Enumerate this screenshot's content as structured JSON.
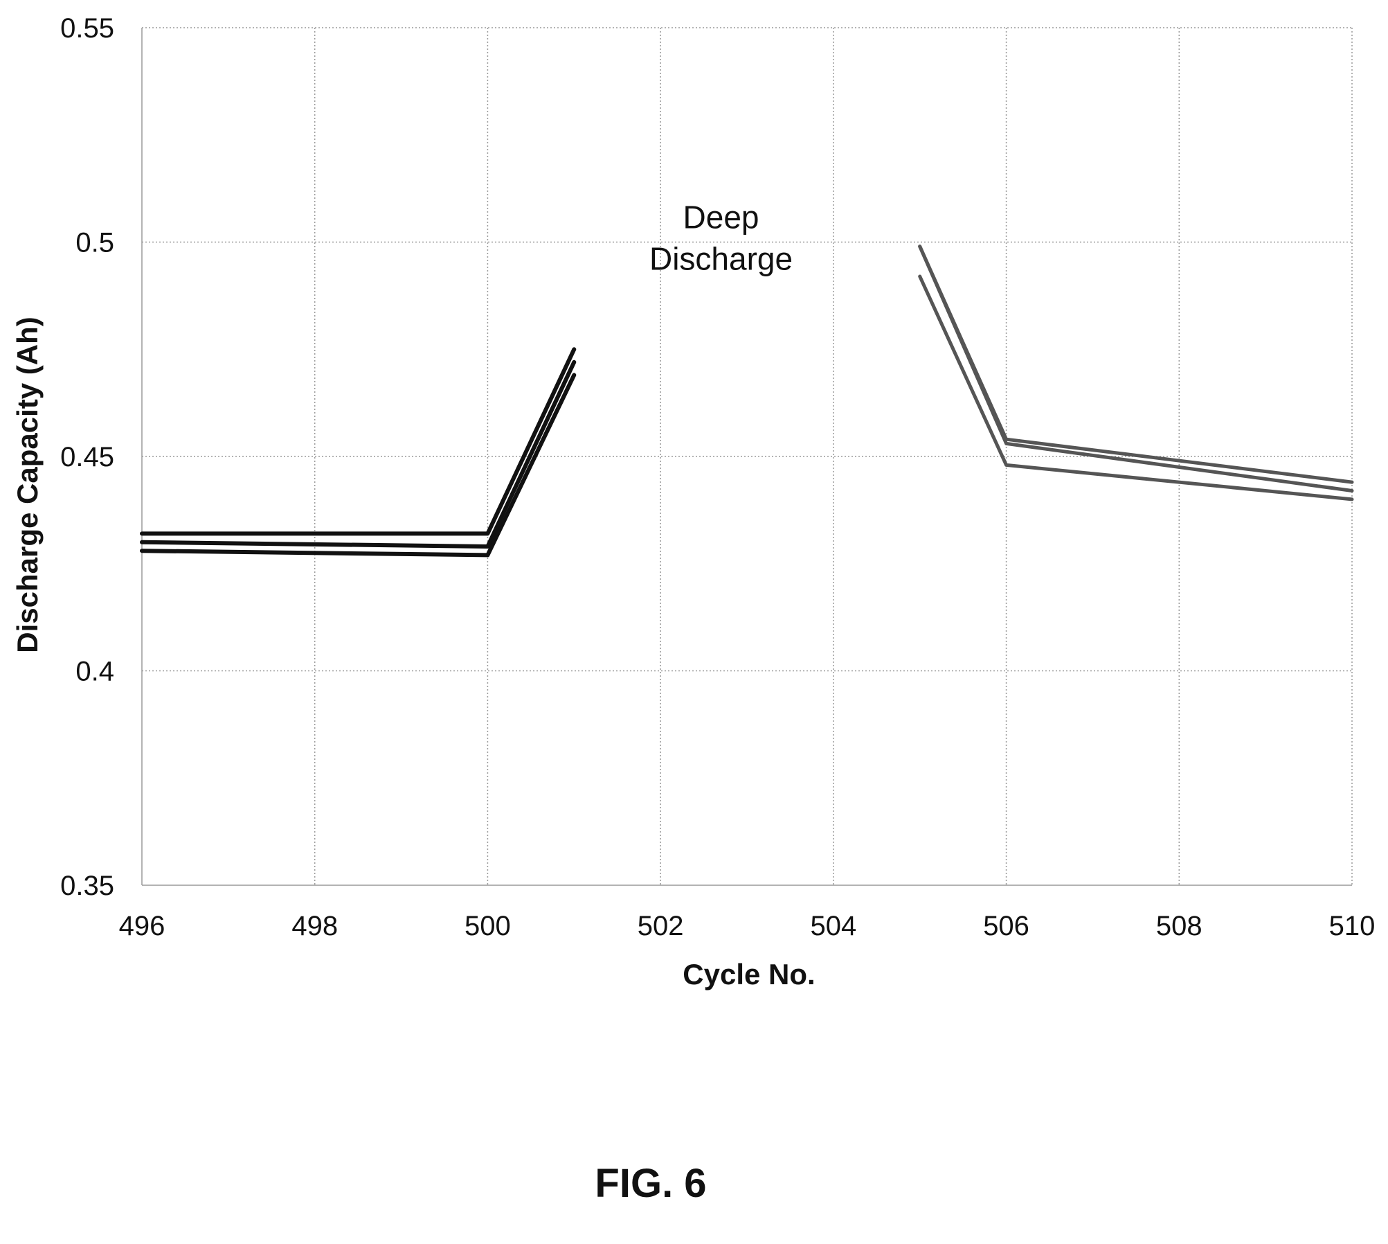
{
  "chart_data": {
    "type": "line",
    "title": "",
    "xlabel": "Cycle No.",
    "ylabel": "Discharge Capacity (Ah)",
    "xlim": [
      496,
      510
    ],
    "ylim": [
      0.35,
      0.55
    ],
    "x_ticks": [
      "496",
      "498",
      "500",
      "502",
      "504",
      "506",
      "508",
      "510"
    ],
    "y_ticks": [
      "0.35",
      "0.4",
      "0.45",
      "0.5",
      "0.55"
    ],
    "grid": true,
    "legend": "none",
    "annotation": {
      "lines": [
        "Deep",
        "Discharge"
      ],
      "x": 502.7,
      "y": 0.49
    },
    "series": [
      {
        "group": "before",
        "color": "#111111",
        "x": [
          496,
          500,
          501
        ],
        "y": [
          0.432,
          0.432,
          0.475
        ]
      },
      {
        "group": "before",
        "color": "#111111",
        "x": [
          496,
          500,
          501
        ],
        "y": [
          0.43,
          0.429,
          0.472
        ]
      },
      {
        "group": "before",
        "color": "#111111",
        "x": [
          496,
          500,
          501
        ],
        "y": [
          0.428,
          0.427,
          0.469
        ]
      },
      {
        "group": "after",
        "color": "#555555",
        "x": [
          505,
          506,
          510
        ],
        "y": [
          0.499,
          0.454,
          0.444
        ]
      },
      {
        "group": "after",
        "color": "#555555",
        "x": [
          505,
          506,
          510
        ],
        "y": [
          0.499,
          0.453,
          0.442
        ]
      },
      {
        "group": "after",
        "color": "#555555",
        "x": [
          505,
          506,
          510
        ],
        "y": [
          0.492,
          0.448,
          0.44
        ]
      }
    ]
  },
  "figure": {
    "label": "FIG. 6"
  }
}
